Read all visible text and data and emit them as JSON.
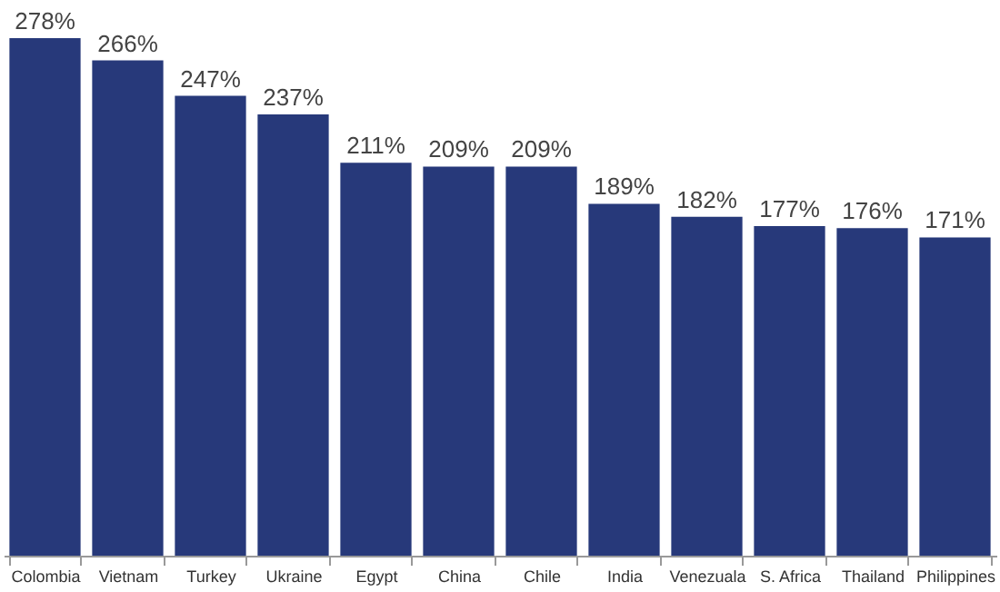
{
  "chart_data": {
    "type": "bar",
    "categories": [
      "Colombia",
      "Vietnam",
      "Turkey",
      "Ukraine",
      "Egypt",
      "China",
      "Chile",
      "India",
      "Venezuala",
      "S. Africa",
      "Thailand",
      "Philippines"
    ],
    "values": [
      278,
      266,
      247,
      237,
      211,
      209,
      209,
      189,
      182,
      177,
      176,
      171
    ],
    "value_labels": [
      "278%",
      "266%",
      "247%",
      "237%",
      "211%",
      "209%",
      "209%",
      "189%",
      "182%",
      "177%",
      "176%",
      "171%"
    ],
    "color": "#27397a",
    "grid": false,
    "tick_labels": "x"
  }
}
